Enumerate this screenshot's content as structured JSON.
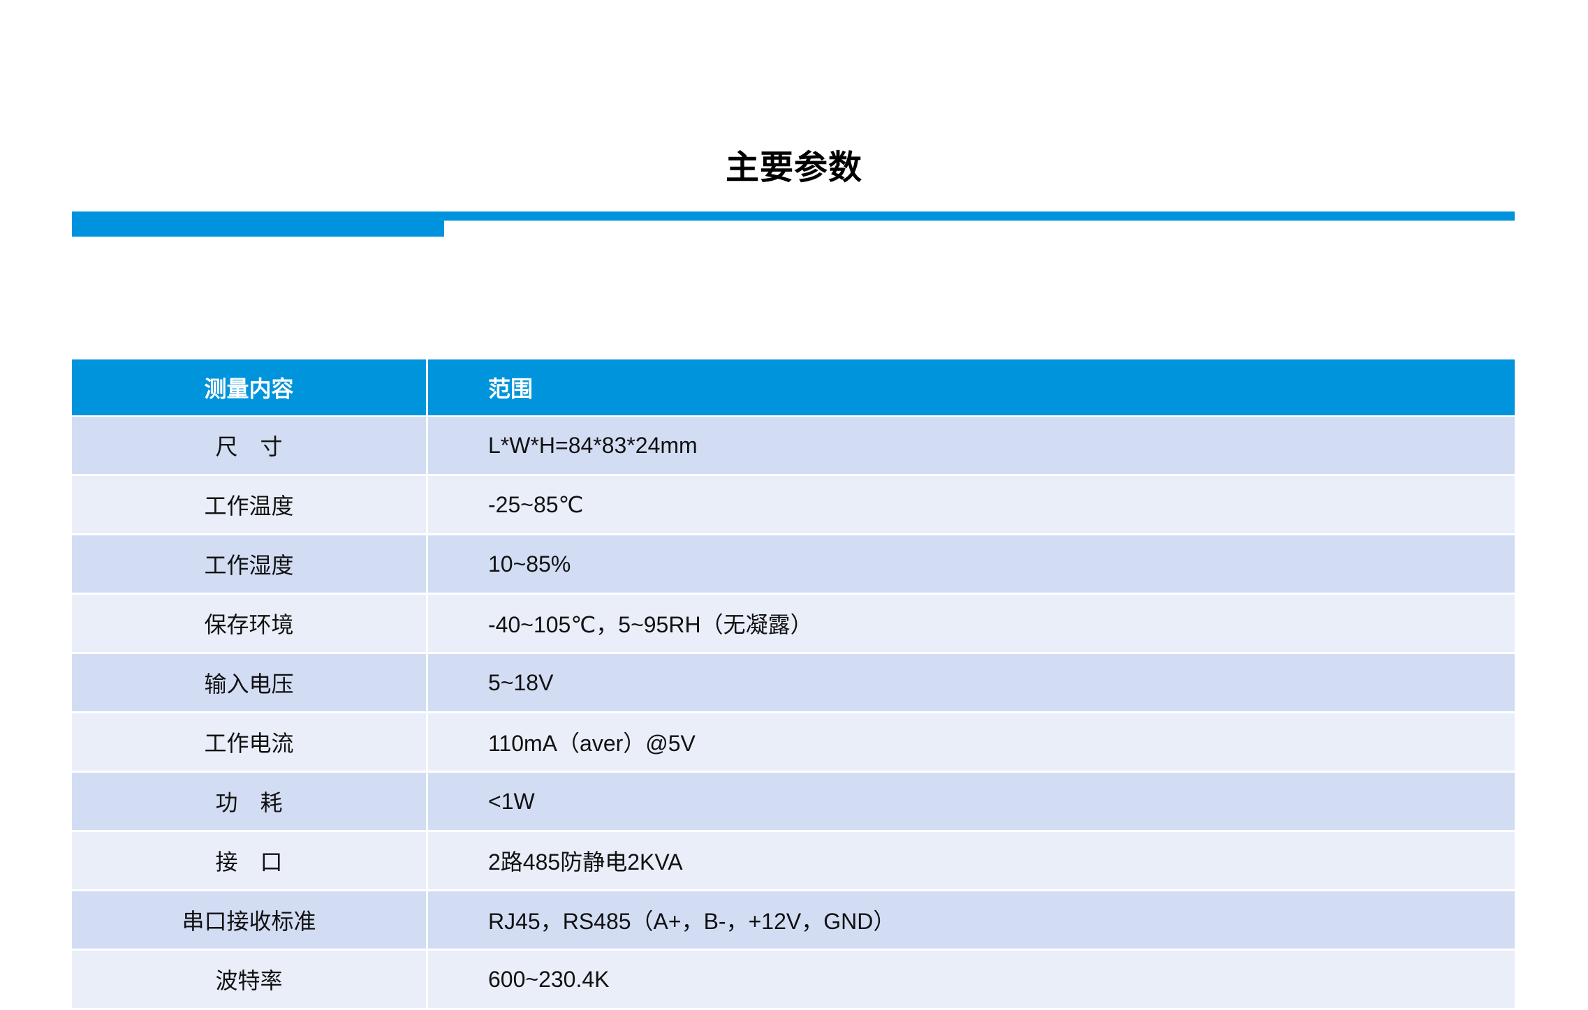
{
  "title": "主要参数",
  "colors": {
    "accent": "#0094DC",
    "row_dark": "#D2DDF4",
    "row_light": "#E9EEF9"
  },
  "table": {
    "headers": [
      "测量内容",
      "范围"
    ],
    "rows": [
      [
        "尺　寸",
        "L*W*H=84*83*24mm"
      ],
      [
        "工作温度",
        "-25~85℃"
      ],
      [
        "工作湿度",
        "10~85%"
      ],
      [
        "保存环境",
        "-40~105℃，5~95RH（无凝露）"
      ],
      [
        "输入电压",
        "5~18V"
      ],
      [
        "工作电流",
        "110mA（aver）@5V"
      ],
      [
        "功　耗",
        "<1W"
      ],
      [
        "接　口",
        "2路485防静电2KVA"
      ],
      [
        "串口接收标准",
        "RJ45，RS485（A+，B-，+12V，GND）"
      ],
      [
        "波特率",
        "600~230.4K"
      ]
    ]
  }
}
